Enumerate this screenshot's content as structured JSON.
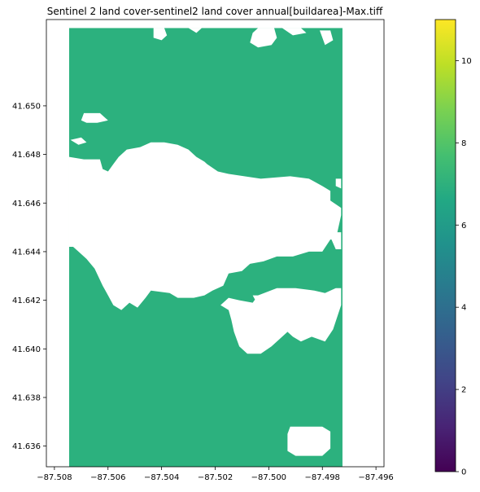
{
  "chart_data": {
    "type": "heatmap",
    "title": "Sentinel 2 land cover-sentinel2 land cover annual[buildarea]-Max.tiff",
    "xlabel": "",
    "ylabel": "",
    "xlim": [
      -87.5083,
      -87.4957
    ],
    "ylim": [
      41.63515,
      41.65355
    ],
    "x_ticks": [
      -87.508,
      -87.506,
      -87.504,
      -87.502,
      -87.5,
      -87.498,
      -87.496
    ],
    "x_tick_labels": [
      "−87.508",
      "−87.506",
      "−87.504",
      "−87.502",
      "−87.500",
      "−87.498",
      "−87.496"
    ],
    "y_ticks": [
      41.636,
      41.638,
      41.64,
      41.642,
      41.644,
      41.646,
      41.648,
      41.65
    ],
    "y_tick_labels": [
      "41.636",
      "41.638",
      "41.640",
      "41.642",
      "41.644",
      "41.646",
      "41.648",
      "41.650"
    ],
    "raster_extent": {
      "x": [
        -87.50745,
        -87.49725
      ],
      "y": [
        41.63515,
        41.6532
      ]
    },
    "raster_value": 7,
    "raster_color": "#2cb17e",
    "nodata_color": "#ffffff",
    "colorbar": {
      "colormap": "viridis",
      "range": [
        0,
        11
      ],
      "ticks": [
        0,
        2,
        4,
        6,
        8,
        10
      ],
      "tick_labels": [
        "0",
        "2",
        "4",
        "6",
        "8",
        "10"
      ]
    },
    "nodata_regions": [
      [
        [
          -87.50745,
          41.6442
        ],
        [
          -87.5073,
          41.6442
        ],
        [
          -87.5071,
          41.644
        ],
        [
          -87.5068,
          41.6437
        ],
        [
          -87.5065,
          41.6433
        ],
        [
          -87.5062,
          41.6426
        ],
        [
          -87.506,
          41.6422
        ],
        [
          -87.5058,
          41.6418
        ],
        [
          -87.5055,
          41.6416
        ],
        [
          -87.5052,
          41.6419
        ],
        [
          -87.5049,
          41.6417
        ],
        [
          -87.5046,
          41.6421
        ],
        [
          -87.5044,
          41.6424
        ],
        [
          -87.5037,
          41.6423
        ],
        [
          -87.5034,
          41.6421
        ],
        [
          -87.5028,
          41.6421
        ],
        [
          -87.5024,
          41.6422
        ],
        [
          -87.5021,
          41.6424
        ],
        [
          -87.5017,
          41.6426
        ],
        [
          -87.5015,
          41.6431
        ],
        [
          -87.501,
          41.6432
        ],
        [
          -87.5007,
          41.6435
        ],
        [
          -87.5002,
          41.6436
        ],
        [
          -87.4997,
          41.6438
        ],
        [
          -87.4991,
          41.6438
        ],
        [
          -87.4985,
          41.644
        ],
        [
          -87.498,
          41.644
        ],
        [
          -87.4977,
          41.6445
        ],
        [
          -87.4975,
          41.6445
        ],
        [
          -87.4973,
          41.6455
        ],
        [
          -87.4973,
          41.6458
        ],
        [
          -87.4977,
          41.6461
        ],
        [
          -87.4977,
          41.6465
        ],
        [
          -87.498,
          41.6467
        ],
        [
          -87.4985,
          41.647
        ],
        [
          -87.4992,
          41.6471
        ],
        [
          -87.5003,
          41.647
        ],
        [
          -87.5015,
          41.6472
        ],
        [
          -87.5019,
          41.6473
        ],
        [
          -87.5023,
          41.6476
        ],
        [
          -87.5024,
          41.6477
        ],
        [
          -87.5027,
          41.6479
        ],
        [
          -87.503,
          41.6482
        ],
        [
          -87.5034,
          41.6484
        ],
        [
          -87.5039,
          41.6485
        ],
        [
          -87.5044,
          41.6485
        ],
        [
          -87.5048,
          41.6483
        ],
        [
          -87.5053,
          41.6482
        ],
        [
          -87.5056,
          41.6479
        ],
        [
          -87.5058,
          41.6476
        ],
        [
          -87.506,
          41.6473
        ],
        [
          -87.5062,
          41.6474
        ],
        [
          -87.5063,
          41.6478
        ],
        [
          -87.5069,
          41.6478
        ],
        [
          -87.50745,
          41.6479
        ]
      ],
      [
        [
          -87.4979,
          41.6423
        ],
        [
          -87.4975,
          41.6425
        ],
        [
          -87.4973,
          41.6425
        ],
        [
          -87.4973,
          41.6418
        ],
        [
          -87.4976,
          41.6408
        ],
        [
          -87.4979,
          41.6403
        ],
        [
          -87.4984,
          41.6405
        ],
        [
          -87.4988,
          41.6403
        ],
        [
          -87.4991,
          41.6405
        ],
        [
          -87.4993,
          41.6407
        ],
        [
          -87.4996,
          41.6404
        ],
        [
          -87.4999,
          41.6401
        ],
        [
          -87.5003,
          41.6398
        ],
        [
          -87.5008,
          41.6398
        ],
        [
          -87.5011,
          41.6401
        ],
        [
          -87.5013,
          41.6407
        ],
        [
          -87.5014,
          41.6412
        ],
        [
          -87.5015,
          41.6416
        ],
        [
          -87.5018,
          41.6418
        ],
        [
          -87.5015,
          41.6421
        ],
        [
          -87.5011,
          41.642
        ],
        [
          -87.5006,
          41.6419
        ],
        [
          -87.5004,
          41.6422
        ],
        [
          -87.4997,
          41.6425
        ],
        [
          -87.499,
          41.6425
        ],
        [
          -87.4983,
          41.6424
        ]
      ],
      [
        [
          -87.5005,
          41.6443
        ],
        [
          -87.5,
          41.6445
        ],
        [
          -87.4993,
          41.6445
        ],
        [
          -87.4986,
          41.6444
        ],
        [
          -87.4983,
          41.6442
        ],
        [
          -87.4989,
          41.6441
        ],
        [
          -87.4995,
          41.6441
        ],
        [
          -87.5001,
          41.644
        ]
      ],
      [
        [
          -87.5069,
          41.6497
        ],
        [
          -87.5063,
          41.6497
        ],
        [
          -87.506,
          41.6494
        ],
        [
          -87.5064,
          41.6493
        ],
        [
          -87.5068,
          41.6493
        ],
        [
          -87.507,
          41.6494
        ]
      ],
      [
        [
          -87.5074,
          41.6486
        ],
        [
          -87.507,
          41.6487
        ],
        [
          -87.5068,
          41.6485
        ],
        [
          -87.5071,
          41.6484
        ]
      ],
      [
        [
          -87.5043,
          41.6532
        ],
        [
          -87.5039,
          41.6532
        ],
        [
          -87.5038,
          41.6529
        ],
        [
          -87.504,
          41.6527
        ],
        [
          -87.5043,
          41.6528
        ]
      ],
      [
        [
          -87.503,
          41.6532
        ],
        [
          -87.5025,
          41.6532
        ],
        [
          -87.5027,
          41.653
        ]
      ],
      [
        [
          -87.4995,
          41.6532
        ],
        [
          -87.4988,
          41.6532
        ],
        [
          -87.4986,
          41.653
        ],
        [
          -87.4991,
          41.6529
        ]
      ],
      [
        [
          -87.5004,
          41.6532
        ],
        [
          -87.4998,
          41.6532
        ],
        [
          -87.4997,
          41.6528
        ],
        [
          -87.4999,
          41.6525
        ],
        [
          -87.5004,
          41.6524
        ],
        [
          -87.5007,
          41.6526
        ],
        [
          -87.5006,
          41.653
        ]
      ],
      [
        [
          -87.4981,
          41.6531
        ],
        [
          -87.4977,
          41.6531
        ],
        [
          -87.4976,
          41.6527
        ],
        [
          -87.4979,
          41.6525
        ]
      ],
      [
        [
          -87.4975,
          41.647
        ],
        [
          -87.4973,
          41.647
        ],
        [
          -87.4973,
          41.6466
        ],
        [
          -87.4975,
          41.6467
        ]
      ],
      [
        [
          -87.5006,
          41.6422
        ],
        [
          -87.5003,
          41.6422
        ],
        [
          -87.5002,
          41.642
        ],
        [
          -87.5005,
          41.642
        ]
      ],
      [
        [
          -87.4992,
          41.6368
        ],
        [
          -87.498,
          41.6368
        ],
        [
          -87.4977,
          41.6366
        ],
        [
          -87.4977,
          41.6359
        ],
        [
          -87.498,
          41.6356
        ],
        [
          -87.499,
          41.6356
        ],
        [
          -87.4993,
          41.6358
        ],
        [
          -87.4993,
          41.6365
        ]
      ],
      [
        [
          -87.4977,
          41.6446
        ],
        [
          -87.4975,
          41.6448
        ],
        [
          -87.4973,
          41.6448
        ],
        [
          -87.4973,
          41.6441
        ],
        [
          -87.4975,
          41.6441
        ]
      ]
    ]
  }
}
